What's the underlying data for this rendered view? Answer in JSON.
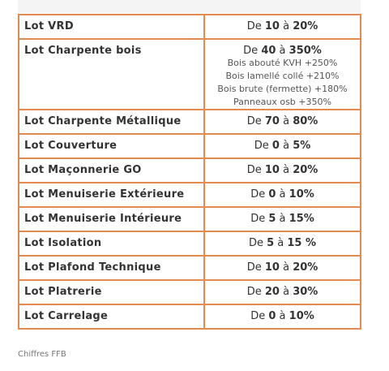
{
  "table": {
    "rows": [
      {
        "lot": "Lot VRD",
        "range": [
          "De",
          "10",
          "à",
          "20%"
        ]
      },
      {
        "lot": "Lot Charpente bois",
        "range": [
          "De",
          "40",
          "à",
          "350%"
        ],
        "notes": [
          "Bois abouté KVH +250%",
          "Bois lamellé collé +210%",
          "Bois brute (fermette) +180%",
          "Panneaux osb +350%"
        ]
      },
      {
        "lot": "Lot Charpente Métallique",
        "range": [
          "De",
          "70",
          "à",
          "80%"
        ]
      },
      {
        "lot": "Lot Couverture",
        "range": [
          "De",
          "0",
          "à",
          "5%"
        ]
      },
      {
        "lot": "Lot Maçonnerie GO",
        "range": [
          "De",
          "10",
          "à",
          "20%"
        ]
      },
      {
        "lot": "Lot Menuiserie Extérieure",
        "range": [
          "De",
          "0",
          "à",
          "10%"
        ]
      },
      {
        "lot": "Lot Menuiserie Intérieure",
        "range": [
          "De",
          "5",
          "à",
          "15%"
        ]
      },
      {
        "lot": "Lot Isolation",
        "range": [
          "De",
          "5",
          "à",
          "15 %"
        ]
      },
      {
        "lot": "Lot Plafond Technique",
        "range": [
          "De",
          "10",
          "à",
          "20%"
        ]
      },
      {
        "lot": "Lot Platrerie",
        "range": [
          "De",
          "20",
          "à",
          "30%"
        ]
      },
      {
        "lot": "Lot Carrelage",
        "range": [
          "De",
          "0",
          "à",
          "10%"
        ]
      }
    ]
  },
  "caption": "Chiffres FFB"
}
